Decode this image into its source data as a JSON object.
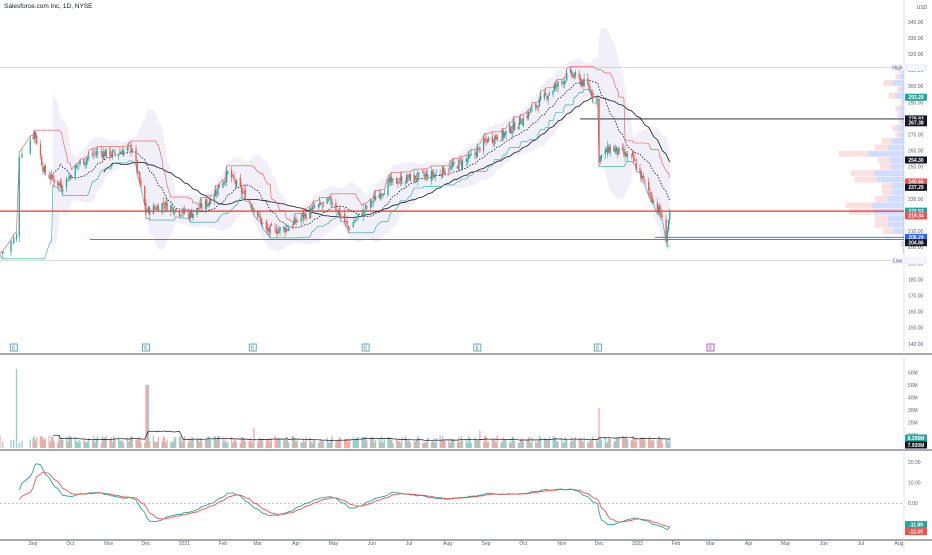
{
  "title": "Salesforce.com Inc, 1D, NYSE",
  "currency": "USD",
  "chart_data": {
    "type": "candlestick",
    "date_range": [
      "2020-08-20",
      "2022-01-27"
    ],
    "x_tick_labels": [
      "Sep",
      "Oct",
      "Nov",
      "Dec",
      "2021",
      "Feb",
      "Mar",
      "Apr",
      "May",
      "Jun",
      "Jul",
      "Aug",
      "Sep",
      "Oct",
      "Nov",
      "Dec",
      "2022",
      "Feb",
      "Mar",
      "Apr",
      "May",
      "Jun",
      "Jul",
      "Aug"
    ],
    "price": {
      "ylim": [
        135,
        345
      ],
      "y_ticks": [
        140,
        150,
        160,
        170,
        180,
        190,
        200,
        210,
        220,
        230,
        240,
        250,
        260,
        270,
        280,
        290,
        300,
        310,
        320,
        330,
        340
      ],
      "ohlc_keypoints": [
        {
          "date": "2020-08-20",
          "close": 196
        },
        {
          "date": "2020-08-26",
          "close": 207
        },
        {
          "date": "2020-08-27",
          "close": 258
        },
        {
          "date": "2020-09-02",
          "close": 272
        },
        {
          "date": "2020-09-10",
          "close": 247
        },
        {
          "date": "2020-09-24",
          "close": 238
        },
        {
          "date": "2020-10-08",
          "close": 252
        },
        {
          "date": "2020-10-22",
          "close": 259
        },
        {
          "date": "2020-11-05",
          "close": 258
        },
        {
          "date": "2020-11-20",
          "close": 262
        },
        {
          "date": "2020-12-01",
          "close": 222
        },
        {
          "date": "2020-12-15",
          "close": 227
        },
        {
          "date": "2021-01-05",
          "close": 220
        },
        {
          "date": "2021-01-20",
          "close": 228
        },
        {
          "date": "2021-02-05",
          "close": 246
        },
        {
          "date": "2021-02-25",
          "close": 226
        },
        {
          "date": "2021-03-08",
          "close": 210
        },
        {
          "date": "2021-03-25",
          "close": 212
        },
        {
          "date": "2021-04-15",
          "close": 224
        },
        {
          "date": "2021-04-30",
          "close": 229
        },
        {
          "date": "2021-05-13",
          "close": 212
        },
        {
          "date": "2021-05-27",
          "close": 224
        },
        {
          "date": "2021-06-15",
          "close": 240
        },
        {
          "date": "2021-07-01",
          "close": 243
        },
        {
          "date": "2021-07-20",
          "close": 245
        },
        {
          "date": "2021-08-05",
          "close": 250
        },
        {
          "date": "2021-08-20",
          "close": 256
        },
        {
          "date": "2021-09-02",
          "close": 267
        },
        {
          "date": "2021-09-15",
          "close": 270
        },
        {
          "date": "2021-10-01",
          "close": 280
        },
        {
          "date": "2021-10-20",
          "close": 295
        },
        {
          "date": "2021-11-08",
          "close": 308
        },
        {
          "date": "2021-11-22",
          "close": 300
        },
        {
          "date": "2021-11-30",
          "close": 291
        },
        {
          "date": "2021-12-01",
          "close": 255
        },
        {
          "date": "2021-12-10",
          "close": 262
        },
        {
          "date": "2021-12-28",
          "close": 255
        },
        {
          "date": "2022-01-10",
          "close": 235
        },
        {
          "date": "2022-01-20",
          "close": 220
        },
        {
          "date": "2022-01-24",
          "close": 206
        },
        {
          "date": "2022-01-27",
          "close": 222
        }
      ],
      "lines": {
        "high": 311.75,
        "low": 191.72,
        "level_279_83": 279.83,
        "level_222_53": 222.53,
        "level_206_24": 206.24,
        "level_204_86": 204.86
      },
      "price_tags": [
        {
          "label": "High",
          "value": "311.75",
          "color": "#f0f3fa",
          "text": "#5d606b",
          "y": 311.75
        },
        {
          "label": "",
          "value": "293.29",
          "color": "#26a69a",
          "text": "#ffffff",
          "y": 293.29
        },
        {
          "label": "",
          "value": "279.83",
          "color": "#131722",
          "text": "#ffffff",
          "y": 279.83
        },
        {
          "label": "",
          "value": "267.38",
          "color": "#131722",
          "text": "#ffffff",
          "y": 277.4
        },
        {
          "label": "",
          "value": "254.30",
          "color": "#131722",
          "text": "#ffffff",
          "y": 254.3
        },
        {
          "label": "",
          "value": "240.66",
          "color": "#ef5350",
          "text": "#ffffff",
          "y": 240.66
        },
        {
          "label": "",
          "value": "237.29",
          "color": "#131722",
          "text": "#ffffff",
          "y": 237.29
        },
        {
          "label": "",
          "value": "222.53",
          "color": "#26a69a",
          "text": "#ffffff",
          "y": 222.53
        },
        {
          "label": "",
          "value": "219.34",
          "color": "#ef5350",
          "text": "#ffffff",
          "y": 219.6
        },
        {
          "label": "",
          "value": "206.24",
          "color": "#2962ff",
          "text": "#ffffff",
          "y": 206.24
        },
        {
          "label": "",
          "value": "204.86",
          "color": "#131722",
          "text": "#ffffff",
          "y": 202.9
        },
        {
          "label": "Low",
          "value": "191.72",
          "color": "#f0f3fa",
          "text": "#5d606b",
          "y": 191.72
        }
      ],
      "earnings_markers": [
        {
          "date": "2020-08-25",
          "label": "E",
          "upcoming": false
        },
        {
          "date": "2020-12-01",
          "label": "E",
          "upcoming": false
        },
        {
          "date": "2021-02-25",
          "label": "E",
          "upcoming": false
        },
        {
          "date": "2021-05-27",
          "label": "E",
          "upcoming": false
        },
        {
          "date": "2021-08-25",
          "label": "E",
          "upcoming": false
        },
        {
          "date": "2021-11-30",
          "label": "E",
          "upcoming": false
        },
        {
          "date": "2022-03-01",
          "label": "E",
          "upcoming": true
        }
      ]
    },
    "volume": {
      "ylim": [
        0,
        70
      ],
      "y_ticks": [
        "10M",
        "20M",
        "30M",
        "40M",
        "50M",
        "60M"
      ],
      "tags": [
        {
          "value": "8.295M",
          "color": "#26a69a"
        },
        {
          "value": "7.930M",
          "color": "#131722"
        }
      ]
    },
    "oscillator": {
      "ylim": [
        -17,
        25
      ],
      "y_ticks": [
        "20.00",
        "10.00",
        "0.00",
        "-10.00"
      ],
      "tags": [
        {
          "value": "-11.89",
          "color": "#26a69a"
        },
        {
          "value": "-12.05",
          "color": "#ef5350"
        }
      ]
    },
    "colors": {
      "up": "#26a69a",
      "down": "#ef5350",
      "cloud": "#9c97d6",
      "magenta": "#c026d3",
      "support": "#2962ff",
      "resistance": "#e53935"
    }
  }
}
